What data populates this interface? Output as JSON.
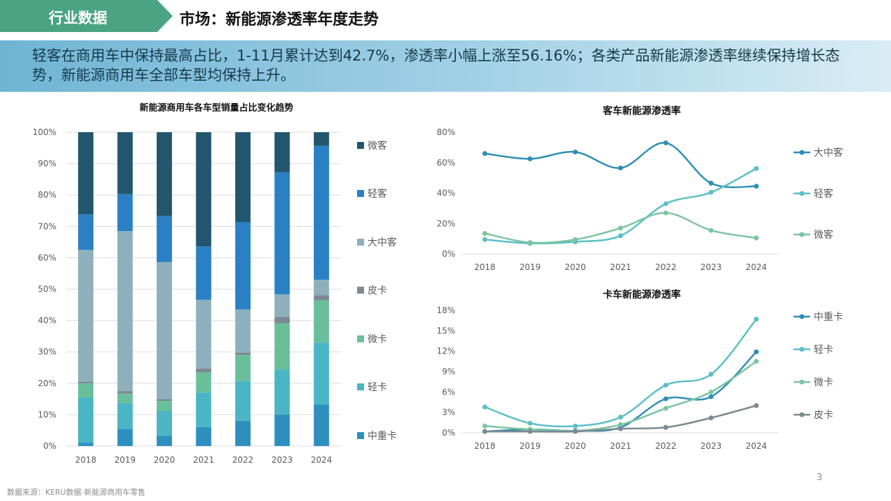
{
  "header": {
    "tag": "行业数据",
    "title": "市场：新能源渗透率年度走势"
  },
  "banner": {
    "text": "轻客在商用车中保持最高占比，1-11月累计达到42.7%，渗透率小幅上涨至56.16%；各类产品新能源渗透率继续保持增长态势，新能源商用车全部车型均保持上升。"
  },
  "footer": {
    "source": "数据来源：KERU数据-新能源商用车零售",
    "page": "3"
  },
  "chart_data": [
    {
      "type": "bar",
      "stacked": "percent",
      "title": "新能源商用车各车型销量占比变化趋势",
      "categories": [
        "2018",
        "2019",
        "2020",
        "2021",
        "2022",
        "2023",
        "2024"
      ],
      "ylim": [
        0,
        100
      ],
      "yticks": [
        "0%",
        "10%",
        "20%",
        "30%",
        "40%",
        "50%",
        "60%",
        "70%",
        "80%",
        "90%",
        "100%"
      ],
      "legend_position": "right",
      "series": [
        {
          "name": "中重卡",
          "color": "#2e8fbf",
          "values": [
            1,
            5.5,
            3.2,
            6,
            8,
            10,
            13.2
          ]
        },
        {
          "name": "轻卡",
          "color": "#4ab5c4",
          "values": [
            14.5,
            8.2,
            8,
            11,
            12.7,
            14.3,
            19.8
          ]
        },
        {
          "name": "微卡",
          "color": "#6abf9a",
          "values": [
            4.5,
            3,
            3.2,
            6.5,
            8.3,
            14.7,
            13.4
          ]
        },
        {
          "name": "皮卡",
          "color": "#7b8a93",
          "values": [
            0.5,
            0.8,
            0.6,
            1.2,
            0.8,
            2,
            1.6
          ]
        },
        {
          "name": "大中客",
          "color": "#8eb0bd",
          "values": [
            42,
            51,
            43.6,
            21.9,
            13.7,
            7.2,
            5
          ]
        },
        {
          "name": "轻客",
          "color": "#2a80c4",
          "values": [
            11.3,
            11.8,
            14.7,
            17,
            27.9,
            38.8,
            42.7
          ]
        },
        {
          "name": "微客",
          "color": "#22566e",
          "values": [
            26.2,
            19.7,
            26.7,
            36.4,
            28.6,
            12.7,
            4.3
          ]
        }
      ]
    },
    {
      "type": "line",
      "smooth": true,
      "title": "客车新能源渗透率",
      "x": [
        "2018",
        "2019",
        "2020",
        "2021",
        "2022",
        "2023",
        "2024"
      ],
      "ylim": [
        0,
        80
      ],
      "yticks": [
        "0%",
        "20%",
        "40%",
        "60%",
        "80%"
      ],
      "legend_position": "right",
      "series": [
        {
          "name": "大中客",
          "color": "#2e8fb5",
          "values": [
            66,
            62.5,
            67,
            56.5,
            73,
            46.5,
            44.5
          ]
        },
        {
          "name": "轻客",
          "color": "#5bbfc6",
          "values": [
            9.5,
            7,
            8,
            12,
            33,
            40.5,
            56.16
          ]
        },
        {
          "name": "微客",
          "color": "#7cc4a0",
          "values": [
            13.5,
            7.5,
            9.5,
            17,
            27,
            15.5,
            10.5
          ]
        }
      ]
    },
    {
      "type": "line",
      "smooth": true,
      "title": "卡车新能源渗透率",
      "x": [
        "2018",
        "2019",
        "2020",
        "2021",
        "2022",
        "2023",
        "2024"
      ],
      "ylim": [
        0,
        18
      ],
      "yticks": [
        "0%",
        "3%",
        "6%",
        "9%",
        "12%",
        "15%",
        "18%"
      ],
      "legend_position": "right",
      "series": [
        {
          "name": "中重卡",
          "color": "#2e8fb5",
          "values": [
            0.2,
            0.5,
            0.3,
            0.8,
            5,
            5.3,
            11.9
          ]
        },
        {
          "name": "轻卡",
          "color": "#5bbfc6",
          "values": [
            3.8,
            1.4,
            1,
            2.3,
            7,
            8.6,
            16.7
          ]
        },
        {
          "name": "微卡",
          "color": "#7cc4a0",
          "values": [
            1,
            0.5,
            0.3,
            1.2,
            3.6,
            6,
            10.5
          ]
        },
        {
          "name": "皮卡",
          "color": "#7b8a93",
          "values": [
            0.2,
            0.2,
            0.2,
            0.6,
            0.8,
            2.2,
            4
          ]
        }
      ]
    }
  ]
}
